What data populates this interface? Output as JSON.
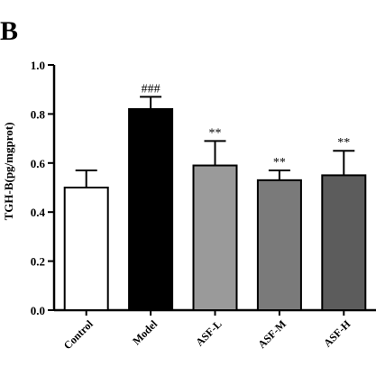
{
  "panel_label": "B",
  "chart_data": {
    "type": "bar",
    "title": "",
    "xlabel": "",
    "ylabel": "TGH-B(pg/mgprot)",
    "ylim": [
      0,
      1.0
    ],
    "yticks": [
      "0.0",
      "0.2",
      "0.4",
      "0.6",
      "0.8",
      "1.0"
    ],
    "grid": false,
    "categories": [
      "Control",
      "Model",
      "ASF-L",
      "ASF-M",
      "ASF-H"
    ],
    "values": [
      0.5,
      0.82,
      0.59,
      0.53,
      0.55
    ],
    "errors": [
      0.07,
      0.05,
      0.1,
      0.04,
      0.1
    ],
    "annotations": [
      "",
      "###",
      "**",
      "**",
      "**"
    ],
    "colors": [
      "#ffffff",
      "#000000",
      "#9a9a9a",
      "#7a7a7a",
      "#5c5c5c"
    ]
  }
}
